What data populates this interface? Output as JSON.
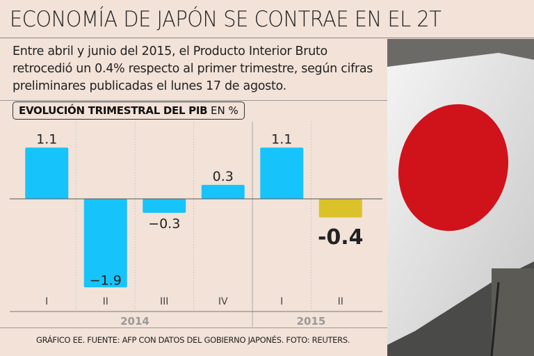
{
  "header": {
    "title": "ECONOMÍA DE JAPÓN SE CONTRAE EN EL 2T",
    "intro": "Entre abril y junio del 2015, el Producto Interior Bruto retrocedió un 0.4% respecto al primer trimestre, según cifras preliminares publicadas el lunes 17 de agosto."
  },
  "chart_data": {
    "type": "bar",
    "title": "EVOLUCIÓN TRIMESTRAL DEL PIB",
    "unit_label": "EN %",
    "categories": [
      "I",
      "II",
      "III",
      "IV",
      "I",
      "II"
    ],
    "groups": [
      {
        "label": "2014",
        "count": 4
      },
      {
        "label": "2015",
        "count": 2
      }
    ],
    "values": [
      1.1,
      -1.9,
      -0.3,
      0.3,
      1.1,
      -0.4
    ],
    "value_labels": [
      "1.1",
      "-1.9",
      "-0.3",
      "0.3",
      "1.1",
      "-0.4"
    ],
    "highlight_index": 5,
    "colors": {
      "bar": "#16c4fb",
      "highlight": "#dcc22a"
    },
    "ylim": [
      -1.9,
      1.1
    ]
  },
  "footer": {
    "credit": "GRÁFICO EE. FUENTE: AFP CON DATOS DEL GOBIERNO JAPONÉS. FOTO: REUTERS."
  }
}
